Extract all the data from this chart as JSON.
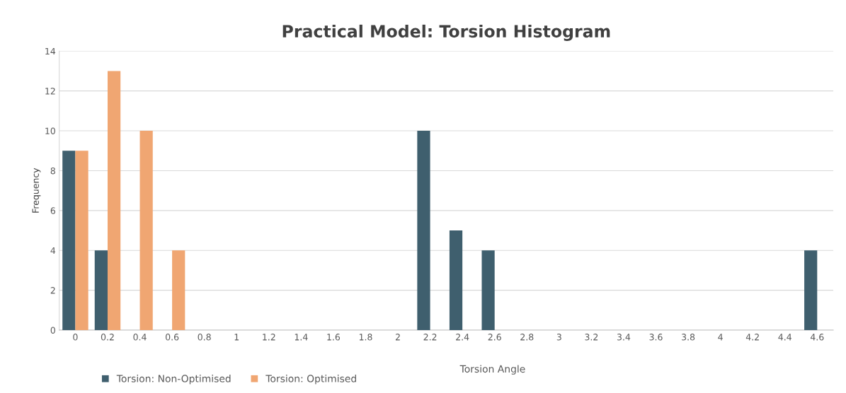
{
  "chart_data": {
    "type": "bar",
    "title": "Practical Model: Torsion Histogram",
    "xlabel": "Torsion Angle",
    "ylabel": "Frequency",
    "categories": [
      "0",
      "0.2",
      "0.4",
      "0.6",
      "0.8",
      "1",
      "1.2",
      "1.4",
      "1.6",
      "1.8",
      "2",
      "2.2",
      "2.4",
      "2.6",
      "2.8",
      "3",
      "3.2",
      "3.4",
      "3.6",
      "3.8",
      "4",
      "4.2",
      "4.4",
      "4.6"
    ],
    "series": [
      {
        "name": "Torsion: Non-Optimised",
        "color": "#3f5f6e",
        "values": [
          9,
          4,
          0,
          0,
          0,
          0,
          0,
          0,
          0,
          0,
          0,
          10,
          5,
          4,
          0,
          0,
          0,
          0,
          0,
          0,
          0,
          0,
          0,
          4
        ]
      },
      {
        "name": "Torsion: Optimised",
        "color": "#f0a672",
        "values": [
          9,
          13,
          10,
          4,
          0,
          0,
          0,
          0,
          0,
          0,
          0,
          0,
          0,
          0,
          0,
          0,
          0,
          0,
          0,
          0,
          0,
          0,
          0,
          0
        ]
      }
    ],
    "ylim": [
      0,
      14
    ],
    "yticks": [
      0,
      2,
      4,
      6,
      8,
      10,
      12,
      14
    ],
    "grid": "y",
    "legend": "bottom"
  }
}
